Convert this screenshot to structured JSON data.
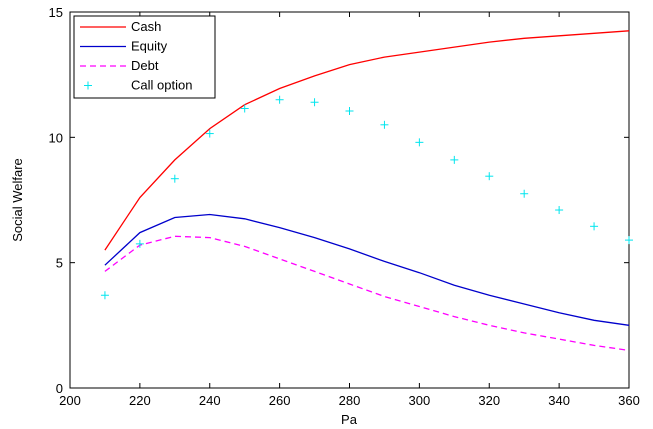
{
  "chart_data": {
    "type": "line",
    "xlabel": "Pa",
    "ylabel": "Social Welfare",
    "xlim": [
      200,
      360
    ],
    "ylim": [
      0,
      15
    ],
    "xticks": [
      200,
      220,
      240,
      260,
      280,
      300,
      320,
      340,
      360
    ],
    "yticks": [
      0,
      5,
      10,
      15
    ],
    "grid": false,
    "legend_position": "top-left",
    "series": [
      {
        "name": "Cash",
        "style": "solid",
        "color": "#ff0000",
        "x": [
          210,
          220,
          230,
          240,
          250,
          260,
          270,
          280,
          290,
          300,
          310,
          320,
          330,
          340,
          350,
          360
        ],
        "y": [
          5.5,
          7.6,
          9.1,
          10.35,
          11.3,
          11.95,
          12.45,
          12.9,
          13.2,
          13.4,
          13.6,
          13.8,
          13.95,
          14.05,
          14.15,
          14.25
        ]
      },
      {
        "name": "Equity",
        "style": "solid",
        "color": "#0000cc",
        "x": [
          210,
          220,
          230,
          240,
          250,
          260,
          270,
          280,
          290,
          300,
          310,
          320,
          330,
          340,
          350,
          360
        ],
        "y": [
          4.9,
          6.2,
          6.8,
          6.92,
          6.75,
          6.4,
          6.0,
          5.55,
          5.05,
          4.6,
          4.1,
          3.7,
          3.35,
          3.0,
          2.7,
          2.5
        ]
      },
      {
        "name": "Debt",
        "style": "dashed",
        "color": "#ff00ff",
        "x": [
          210,
          220,
          230,
          240,
          250,
          260,
          270,
          280,
          290,
          300,
          310,
          320,
          330,
          340,
          350,
          360
        ],
        "y": [
          4.65,
          5.7,
          6.05,
          6.0,
          5.65,
          5.15,
          4.65,
          4.15,
          3.65,
          3.25,
          2.85,
          2.5,
          2.2,
          1.95,
          1.7,
          1.5
        ]
      },
      {
        "name": "Call option",
        "style": "markers",
        "marker": "+",
        "color": "#00e5ee",
        "x": [
          210,
          220,
          230,
          240,
          250,
          260,
          270,
          280,
          290,
          300,
          310,
          320,
          330,
          340,
          350,
          360
        ],
        "y": [
          3.7,
          5.75,
          8.35,
          10.15,
          11.15,
          11.5,
          11.4,
          11.05,
          10.5,
          9.8,
          9.1,
          8.45,
          7.75,
          7.1,
          6.45,
          5.9
        ]
      }
    ]
  }
}
